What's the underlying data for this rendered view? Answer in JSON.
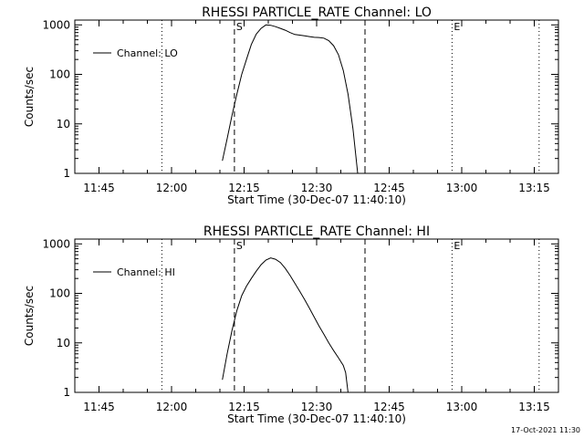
{
  "footer_timestamp": "17-Oct-2021 11:30",
  "chart_data": [
    {
      "type": "line",
      "title": "RHESSI PARTICLE_RATE Channel: LO",
      "xlabel": "Start Time (30-Dec-07 11:40:10)",
      "ylabel": "Counts/sec",
      "x_ticks": [
        "11:45",
        "12:00",
        "12:15",
        "12:30",
        "12:45",
        "13:00",
        "13:15"
      ],
      "y_ticks": [
        "1",
        "10",
        "100",
        "1000"
      ],
      "y_scale": "log",
      "xlim": [
        "11:40",
        "13:20"
      ],
      "ylim": [
        1,
        1250
      ],
      "legend": {
        "label": "Channel: LO",
        "placement": "top-left"
      },
      "markers": [
        {
          "time": "11:58",
          "style": "dotted",
          "label": ""
        },
        {
          "time": "12:13",
          "style": "dashed",
          "label": "S"
        },
        {
          "time": "12:40",
          "style": "dashed",
          "label": ""
        },
        {
          "time": "12:58",
          "style": "dotted",
          "label": "E"
        },
        {
          "time": "13:16",
          "style": "dotted",
          "label": ""
        }
      ],
      "series": [
        {
          "name": "Channel: LO",
          "points": [
            [
              "12:10:30",
              1.8
            ],
            [
              "12:11:30",
              5
            ],
            [
              "12:12:30",
              15
            ],
            [
              "12:13:30",
              40
            ],
            [
              "12:14:30",
              100
            ],
            [
              "12:15:30",
              200
            ],
            [
              "12:16:30",
              400
            ],
            [
              "12:17:30",
              650
            ],
            [
              "12:18:30",
              850
            ],
            [
              "12:19:30",
              1000
            ],
            [
              "12:20:30",
              980
            ],
            [
              "12:21:30",
              920
            ],
            [
              "12:22:30",
              850
            ],
            [
              "12:23:30",
              780
            ],
            [
              "12:24:30",
              700
            ],
            [
              "12:25:30",
              640
            ],
            [
              "12:26:30",
              620
            ],
            [
              "12:27:30",
              600
            ],
            [
              "12:28:30",
              580
            ],
            [
              "12:29:30",
              560
            ],
            [
              "12:30:30",
              555
            ],
            [
              "12:31:30",
              540
            ],
            [
              "12:32:30",
              480
            ],
            [
              "12:33:30",
              380
            ],
            [
              "12:34:30",
              250
            ],
            [
              "12:35:30",
              120
            ],
            [
              "12:36:30",
              40
            ],
            [
              "12:37:30",
              8
            ],
            [
              "12:38:30",
              1
            ]
          ]
        }
      ]
    },
    {
      "type": "line",
      "title": "RHESSI PARTICLE_RATE Channel: HI",
      "xlabel": "Start Time (30-Dec-07 11:40:10)",
      "ylabel": "Counts/sec",
      "x_ticks": [
        "11:45",
        "12:00",
        "12:15",
        "12:30",
        "12:45",
        "13:00",
        "13:15"
      ],
      "y_ticks": [
        "1",
        "10",
        "100",
        "1000"
      ],
      "y_scale": "log",
      "xlim": [
        "11:40",
        "13:20"
      ],
      "ylim": [
        1,
        1250
      ],
      "legend": {
        "label": "Channel: HI",
        "placement": "top-left"
      },
      "markers": [
        {
          "time": "11:58",
          "style": "dotted",
          "label": ""
        },
        {
          "time": "12:13",
          "style": "dashed",
          "label": "S"
        },
        {
          "time": "12:40",
          "style": "dashed",
          "label": ""
        },
        {
          "time": "12:58",
          "style": "dotted",
          "label": "E"
        },
        {
          "time": "13:16",
          "style": "dotted",
          "label": ""
        }
      ],
      "series": [
        {
          "name": "Channel: HI",
          "points": [
            [
              "12:10:30",
              1.8
            ],
            [
              "12:11:30",
              6
            ],
            [
              "12:12:30",
              18
            ],
            [
              "12:13:30",
              45
            ],
            [
              "12:14:30",
              90
            ],
            [
              "12:15:30",
              140
            ],
            [
              "12:16:30",
              200
            ],
            [
              "12:17:30",
              280
            ],
            [
              "12:18:30",
              380
            ],
            [
              "12:19:30",
              470
            ],
            [
              "12:20:30",
              520
            ],
            [
              "12:21:30",
              490
            ],
            [
              "12:22:30",
              420
            ],
            [
              "12:23:30",
              320
            ],
            [
              "12:24:30",
              230
            ],
            [
              "12:25:30",
              160
            ],
            [
              "12:26:30",
              110
            ],
            [
              "12:27:30",
              75
            ],
            [
              "12:28:30",
              50
            ],
            [
              "12:29:30",
              33
            ],
            [
              "12:30:30",
              22
            ],
            [
              "12:31:30",
              15
            ],
            [
              "12:32:30",
              10
            ],
            [
              "12:33:30",
              7
            ],
            [
              "12:34:30",
              5
            ],
            [
              "12:35:30",
              3.5
            ],
            [
              "12:36:00",
              2.5
            ],
            [
              "12:36:30",
              1
            ]
          ]
        }
      ]
    }
  ]
}
